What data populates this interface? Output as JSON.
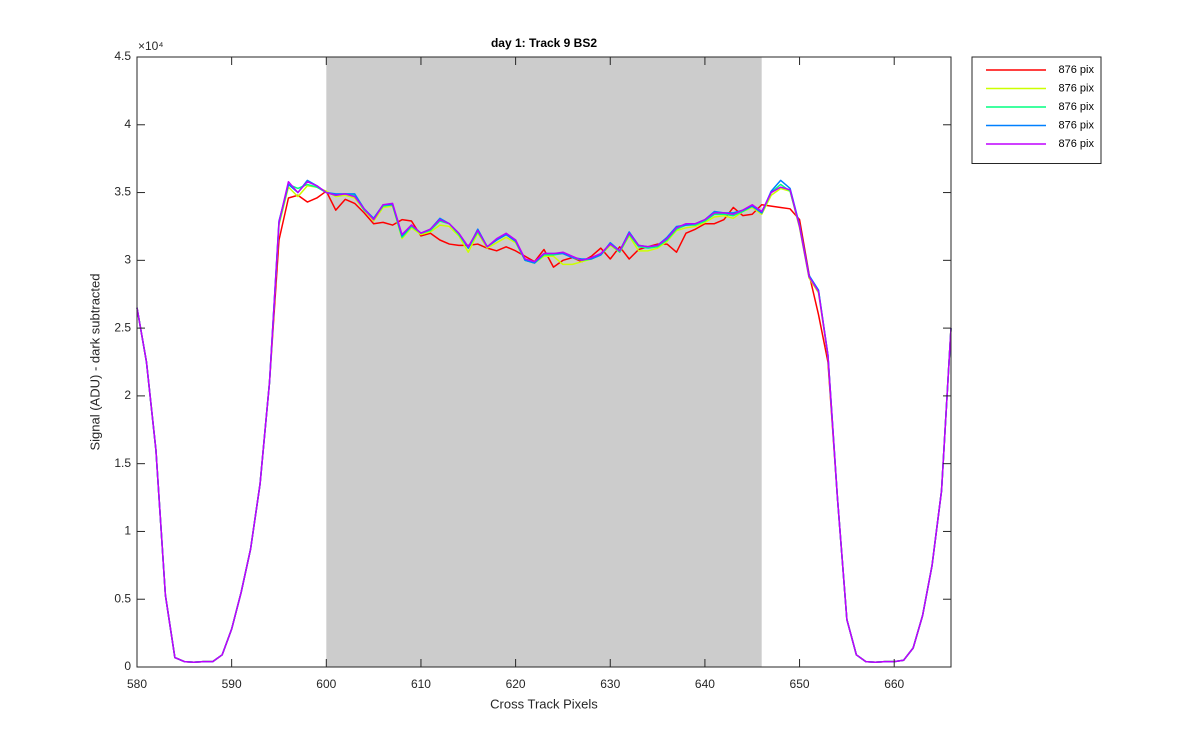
{
  "chart_data": {
    "type": "line",
    "title": "day 1: Track 9  BS2",
    "x_label": "Cross Track Pixels",
    "y_label": "Signal (ADU) - dark subtracted",
    "y_exponent": "×10⁴",
    "xlim": [
      580,
      666
    ],
    "ylim": [
      0,
      45000
    ],
    "xticks": [
      580,
      590,
      600,
      610,
      620,
      630,
      640,
      650,
      660
    ],
    "yticks": [
      0,
      {
        "value": 5000,
        "label": "0.5"
      },
      {
        "value": 10000,
        "label": "1"
      },
      {
        "value": 15000,
        "label": "1.5"
      },
      {
        "value": 20000,
        "label": "2"
      },
      {
        "value": 25000,
        "label": "2.5"
      },
      {
        "value": 30000,
        "label": "3"
      },
      {
        "value": 35000,
        "label": "3.5"
      },
      {
        "value": 40000,
        "label": "4"
      },
      {
        "value": 45000,
        "label": "4.5"
      }
    ],
    "grid": false,
    "legend": "outside-top-right",
    "shaded_region": {
      "x": [
        600,
        646
      ],
      "color": "#cccccc"
    },
    "x": [
      580,
      581,
      582,
      583,
      584,
      585,
      586,
      587,
      588,
      589,
      590,
      591,
      592,
      593,
      594,
      595,
      596,
      597,
      598,
      599,
      600,
      601,
      602,
      603,
      604,
      605,
      606,
      607,
      608,
      609,
      610,
      611,
      612,
      613,
      614,
      615,
      616,
      617,
      618,
      619,
      620,
      621,
      622,
      623,
      624,
      625,
      626,
      627,
      628,
      629,
      630,
      631,
      632,
      633,
      634,
      635,
      636,
      637,
      638,
      639,
      640,
      641,
      642,
      643,
      644,
      645,
      646,
      647,
      648,
      649,
      650,
      651,
      652,
      653,
      654,
      655,
      656,
      657,
      658,
      659,
      660,
      661,
      662,
      663,
      664,
      665,
      666
    ],
    "series": [
      {
        "name": "876 pix",
        "color": "#ff0000",
        "values": [
          26500,
          22500,
          16000,
          5300,
          700,
          400,
          350,
          400,
          400,
          900,
          2800,
          5500,
          8700,
          13500,
          21000,
          31500,
          34600,
          34800,
          34300,
          34600,
          35100,
          33700,
          34500,
          34200,
          33500,
          32700,
          32800,
          32600,
          33000,
          32900,
          31800,
          32000,
          31500,
          31200,
          31100,
          31100,
          31200,
          30900,
          30700,
          31000,
          30700,
          30300,
          29900,
          30800,
          29500,
          30000,
          30200,
          29900,
          30300,
          30900,
          30100,
          31000,
          30100,
          30800,
          31000,
          31200,
          31200,
          30600,
          32000,
          32300,
          32700,
          32700,
          33000,
          33900,
          33300,
          33400,
          34100,
          34000,
          33900,
          33800,
          33000,
          29000,
          26000,
          22500,
          12500,
          3500,
          900,
          400,
          350,
          400,
          400,
          500,
          1400,
          3800,
          7500,
          13000,
          25000
        ]
      },
      {
        "name": "876 pix",
        "color": "#ccff00",
        "values": [
          26500,
          22500,
          16000,
          5300,
          700,
          400,
          350,
          400,
          400,
          900,
          2800,
          5500,
          8700,
          13500,
          21000,
          32600,
          35400,
          34700,
          35500,
          35400,
          35100,
          34700,
          34800,
          34600,
          33700,
          32900,
          33900,
          34000,
          31600,
          32400,
          31900,
          32100,
          32600,
          32500,
          31800,
          30600,
          32000,
          30900,
          31300,
          31700,
          31300,
          30000,
          29800,
          30300,
          30300,
          29700,
          29700,
          29900,
          30100,
          30400,
          31100,
          30600,
          31800,
          30700,
          30700,
          30900,
          31400,
          32200,
          32400,
          32500,
          32800,
          33200,
          33300,
          33100,
          33600,
          33900,
          33400,
          34800,
          35300,
          35100,
          32400,
          28700,
          27600,
          22900,
          12500,
          3500,
          900,
          400,
          350,
          400,
          400,
          500,
          1400,
          3800,
          7500,
          13000,
          25000
        ]
      },
      {
        "name": "876 pix",
        "color": "#00ff80",
        "values": [
          26500,
          22500,
          16000,
          5300,
          700,
          400,
          350,
          400,
          400,
          900,
          2800,
          5500,
          8700,
          13500,
          21000,
          32700,
          35600,
          35300,
          35600,
          35400,
          35000,
          34800,
          34900,
          34800,
          33700,
          33100,
          34000,
          34100,
          31700,
          32500,
          32000,
          32200,
          32900,
          32700,
          31900,
          30900,
          32100,
          31000,
          31500,
          31900,
          31500,
          30000,
          29800,
          30400,
          30400,
          30500,
          30200,
          30000,
          30100,
          30400,
          31200,
          30600,
          31900,
          31000,
          30900,
          31000,
          31500,
          32300,
          32600,
          32600,
          32900,
          33400,
          33400,
          33300,
          33600,
          34000,
          33500,
          35000,
          35600,
          35100,
          32500,
          28800,
          27800,
          23000,
          12500,
          3500,
          900,
          400,
          350,
          400,
          400,
          500,
          1400,
          3800,
          7500,
          13000,
          25000
        ]
      },
      {
        "name": "876 pix",
        "color": "#0080ff",
        "values": [
          26500,
          22500,
          16000,
          5300,
          700,
          400,
          350,
          400,
          400,
          900,
          2800,
          5500,
          8700,
          13500,
          21000,
          32900,
          35600,
          35000,
          35900,
          35500,
          35000,
          34900,
          34900,
          34900,
          33800,
          33100,
          34100,
          34100,
          31800,
          32600,
          32000,
          32300,
          33100,
          32700,
          32000,
          30900,
          32300,
          31000,
          31500,
          31900,
          31400,
          30000,
          29800,
          30500,
          30500,
          30500,
          30200,
          30100,
          30100,
          30400,
          31300,
          30700,
          32100,
          31100,
          31000,
          31100,
          31700,
          32500,
          32600,
          32700,
          33000,
          33600,
          33500,
          33500,
          33700,
          34000,
          33500,
          35100,
          35900,
          35300,
          32600,
          28900,
          27800,
          23000,
          12500,
          3500,
          900,
          400,
          350,
          400,
          400,
          500,
          1400,
          3800,
          7500,
          13000,
          25000
        ]
      },
      {
        "name": "876 pix",
        "color": "#bf00ff",
        "values": [
          26500,
          22500,
          16000,
          5300,
          700,
          400,
          350,
          400,
          400,
          900,
          2800,
          5500,
          8700,
          13500,
          21000,
          32800,
          35800,
          35000,
          35800,
          35500,
          35000,
          34800,
          34900,
          34700,
          33800,
          33000,
          34100,
          34200,
          31900,
          32600,
          32000,
          32300,
          33000,
          32700,
          32000,
          31000,
          32200,
          31000,
          31600,
          32000,
          31500,
          30100,
          29900,
          30500,
          30500,
          30600,
          30300,
          30000,
          30200,
          30500,
          31200,
          30700,
          32000,
          31100,
          31000,
          31100,
          31600,
          32400,
          32700,
          32700,
          33000,
          33500,
          33500,
          33400,
          33700,
          34100,
          33600,
          35000,
          35400,
          35200,
          32500,
          28800,
          27700,
          23000,
          12500,
          3500,
          900,
          400,
          350,
          400,
          400,
          500,
          1400,
          3800,
          7500,
          13000,
          25000
        ]
      }
    ]
  }
}
